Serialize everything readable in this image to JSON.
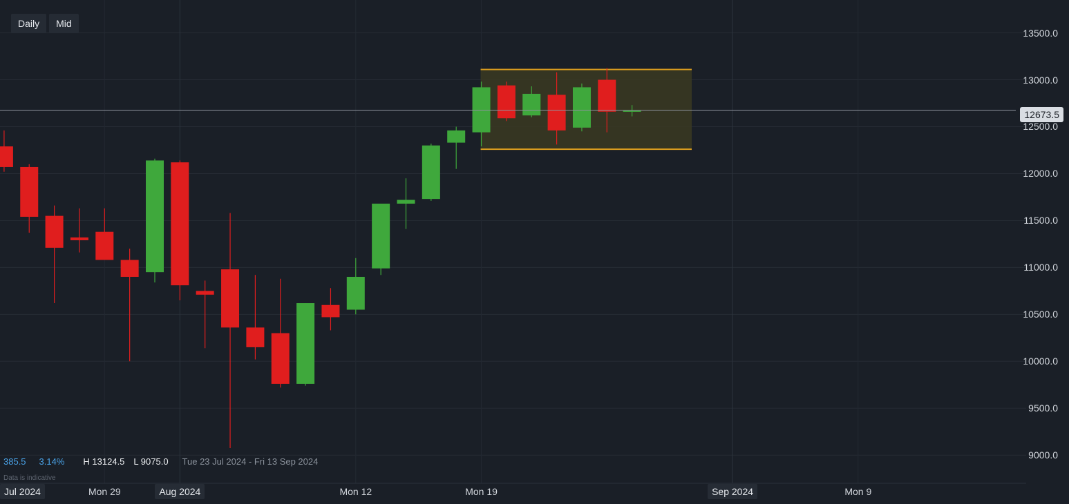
{
  "toolbar": {
    "timeframe": "Daily",
    "price_type": "Mid"
  },
  "stats": {
    "change": "385.5",
    "change_pct": "3.14%",
    "high": "H 13124.5",
    "low": "L 9075.0",
    "range": "Tue 23 Jul 2024 - Fri 13 Sep 2024",
    "note": "Data is indicative"
  },
  "current_price": "12673.5",
  "colors": {
    "background": "#1a1f27",
    "up": "#3fa83c",
    "down": "#e01e1e",
    "range_box_fill": "#3b3a22",
    "range_box_border": "#e0a01f",
    "axis_text": "#d3d7dd",
    "accent": "#4aa3e8"
  },
  "chart_data": {
    "type": "candlestick",
    "y_axis": {
      "labels": [
        "13500.0",
        "13000.0",
        "12500.0",
        "12000.0",
        "11500.0",
        "11000.0",
        "10500.0",
        "10000.0",
        "9500.0",
        "9000.0"
      ],
      "range": [
        8700,
        13850
      ]
    },
    "x_axis": {
      "labels": [
        "Jul 2024",
        "Mon 29",
        "Aug 2024",
        "Mon 12",
        "Mon 19",
        "Sep 2024",
        "Mon 9"
      ],
      "boxed_labels": [
        "Jul 2024",
        "Aug 2024",
        "Sep 2024"
      ],
      "range": [
        "Jul 23",
        "Sep 13"
      ]
    },
    "grid": true,
    "candles": [
      {
        "date": "Jul 23",
        "open": 12290,
        "high": 12460,
        "low": 12020,
        "close": 12070
      },
      {
        "date": "Jul 24",
        "open": 12070,
        "high": 12100,
        "low": 11370,
        "close": 11540
      },
      {
        "date": "Jul 25",
        "open": 11550,
        "high": 11660,
        "low": 10620,
        "close": 11210
      },
      {
        "date": "Jul 26",
        "open": 11320,
        "high": 11630,
        "low": 11160,
        "close": 11290
      },
      {
        "date": "Jul 29",
        "open": 11380,
        "high": 11630,
        "low": 11080,
        "close": 11080
      },
      {
        "date": "Jul 30",
        "open": 11080,
        "high": 11200,
        "low": 10000,
        "close": 10900
      },
      {
        "date": "Jul 31",
        "open": 10950,
        "high": 12160,
        "low": 10840,
        "close": 12140
      },
      {
        "date": "Aug 1",
        "open": 12120,
        "high": 12140,
        "low": 10650,
        "close": 10810
      },
      {
        "date": "Aug 2",
        "open": 10750,
        "high": 10860,
        "low": 10140,
        "close": 10710
      },
      {
        "date": "Aug 5",
        "open": 10980,
        "high": 11580,
        "low": 9075,
        "close": 10360
      },
      {
        "date": "Aug 6",
        "open": 10360,
        "high": 10920,
        "low": 10020,
        "close": 10150
      },
      {
        "date": "Aug 7",
        "open": 10300,
        "high": 10880,
        "low": 9720,
        "close": 9760
      },
      {
        "date": "Aug 8",
        "open": 9760,
        "high": 10620,
        "low": 9740,
        "close": 10620
      },
      {
        "date": "Aug 9",
        "open": 10600,
        "high": 10780,
        "low": 10330,
        "close": 10470
      },
      {
        "date": "Aug 12",
        "open": 10550,
        "high": 11100,
        "low": 10500,
        "close": 10900
      },
      {
        "date": "Aug 13",
        "open": 10990,
        "high": 11680,
        "low": 10920,
        "close": 11680
      },
      {
        "date": "Aug 14",
        "open": 11680,
        "high": 11950,
        "low": 11410,
        "close": 11720
      },
      {
        "date": "Aug 15",
        "open": 11730,
        "high": 12320,
        "low": 11710,
        "close": 12300
      },
      {
        "date": "Aug 16",
        "open": 12330,
        "high": 12500,
        "low": 12050,
        "close": 12460
      },
      {
        "date": "Aug 19",
        "open": 12440,
        "high": 12980,
        "low": 12290,
        "close": 12920
      },
      {
        "date": "Aug 20",
        "open": 12940,
        "high": 12980,
        "low": 12560,
        "close": 12590
      },
      {
        "date": "Aug 21",
        "open": 12620,
        "high": 12930,
        "low": 12600,
        "close": 12850
      },
      {
        "date": "Aug 22",
        "open": 12840,
        "high": 13080,
        "low": 12310,
        "close": 12460
      },
      {
        "date": "Aug 23",
        "open": 12490,
        "high": 12960,
        "low": 12450,
        "close": 12920
      },
      {
        "date": "Aug 26",
        "open": 13000,
        "high": 13124.5,
        "low": 12440,
        "close": 12660
      },
      {
        "date": "Aug 27",
        "open": 12670,
        "high": 12730,
        "low": 12610,
        "close": 12673.5
      }
    ],
    "current_price_line": 12673.5,
    "range_box": {
      "from": "Aug 19",
      "to": "Aug 28",
      "top": 13110,
      "bottom": 12260
    }
  }
}
